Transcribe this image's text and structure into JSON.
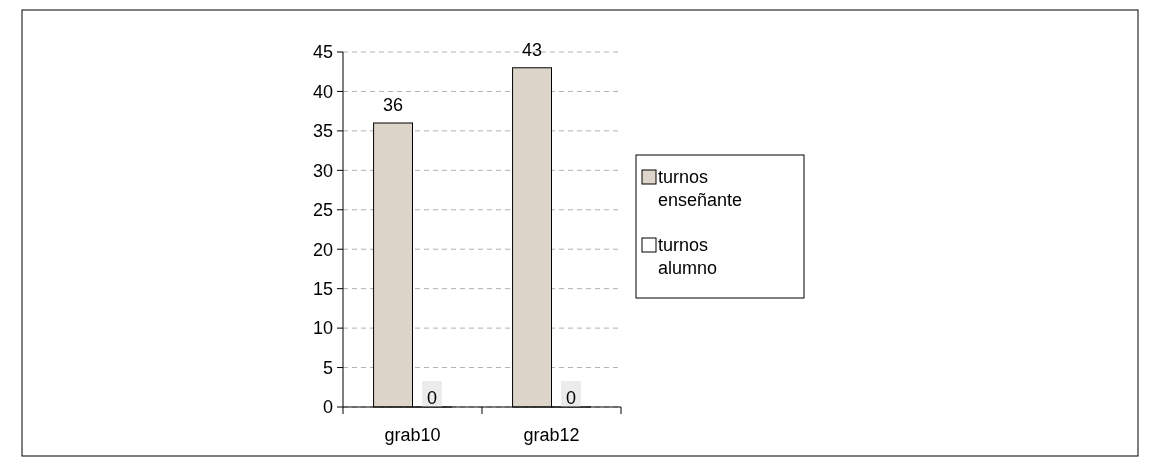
{
  "chart_data": {
    "type": "bar",
    "categories": [
      "grab10",
      "grab12"
    ],
    "series": [
      {
        "name": "turnos enseñante",
        "color": "#ddd5c9",
        "values": [
          36,
          43
        ]
      },
      {
        "name": "turnos alumno",
        "color": "#ffffff",
        "values": [
          0,
          0
        ]
      }
    ],
    "ylim": [
      0,
      45
    ],
    "yticks": [
      0,
      5,
      10,
      15,
      20,
      25,
      30,
      35,
      40,
      45
    ],
    "grid": "y",
    "legend": "right",
    "data_labels": true
  }
}
